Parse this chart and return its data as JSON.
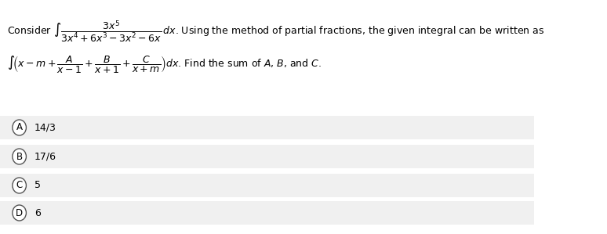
{
  "background_color": "#ffffff",
  "option_bg_color": "#f0f0f0",
  "text_color": "#000000",
  "circle_edge_color": "#555555",
  "line1_text": "Consider $\\int \\dfrac{3x^5}{3x^4+6x^3-3x^2-6x}\\,dx$. Using the method of partial fractions, the given integral can be written as",
  "line2_text": "$\\int\\!\\left(x-m+\\dfrac{A}{x-1}+\\dfrac{B}{x+1}+\\dfrac{C}{x+m}\\right)dx$. Find the sum of $A$, $B$, and $C$.",
  "options": [
    {
      "label": "A",
      "text": "14/3"
    },
    {
      "label": "B",
      "text": "17/6"
    },
    {
      "label": "C",
      "text": "5"
    },
    {
      "label": "D",
      "text": "6"
    }
  ],
  "figwidth": 7.74,
  "figheight": 2.99,
  "dpi": 100
}
